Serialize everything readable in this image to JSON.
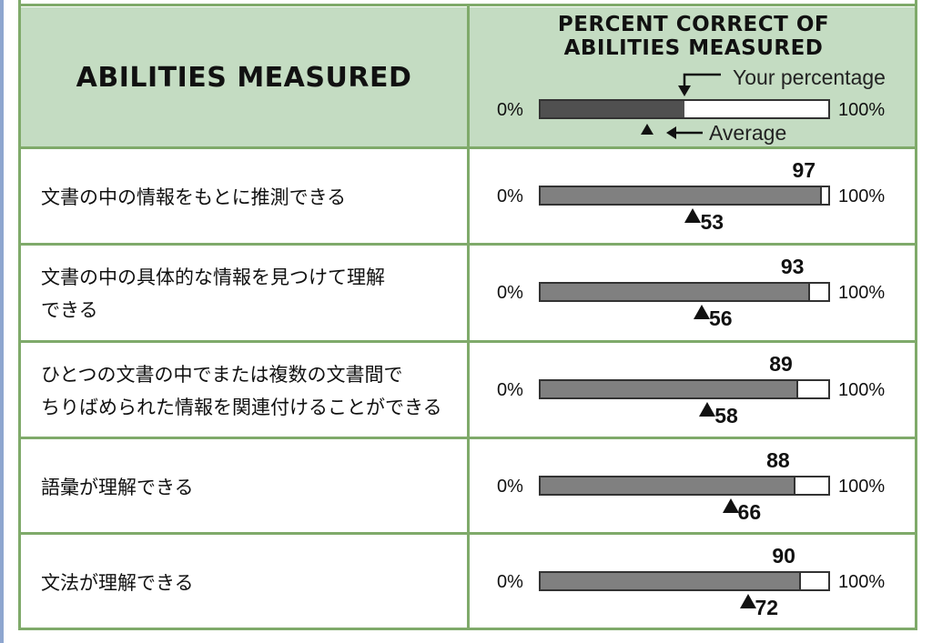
{
  "header": {
    "abilities_title": "ABILITIES MEASURED",
    "percent_title_line1": "PERCENT CORRECT OF",
    "percent_title_line2": "ABILITIES MEASURED"
  },
  "legend": {
    "your_percentage_label": "Your percentage",
    "average_label": "Average",
    "left_pct": "0%",
    "right_pct": "100%",
    "example_fill_fraction": 0.5,
    "example_average_fraction": 0.37
  },
  "colors": {
    "grid_green": "#7faa6a",
    "header_green": "#c4dcc2",
    "bar_gray": "#808080",
    "legend_bar_dark": "#505050"
  },
  "chart_data": {
    "type": "bar",
    "orientation": "horizontal",
    "categories": [
      "文書の中の情報をもとに推測できる",
      "文書の中の具体的な情報を見つけて理解できる",
      "ひとつの文書の中でまたは複数の文書間でちりばめられた情報を関連付けることができる",
      "語彙が理解できる",
      "文法が理解できる"
    ],
    "series": [
      {
        "name": "Your percentage",
        "values": [
          97,
          93,
          89,
          88,
          90
        ]
      },
      {
        "name": "Average",
        "values": [
          53,
          56,
          58,
          66,
          72
        ]
      }
    ],
    "xlim": [
      0,
      100
    ],
    "axis_min_label": "0%",
    "axis_max_label": "100%",
    "title": "PERCENT CORRECT OF ABILITIES MEASURED"
  },
  "rows": [
    {
      "label_line1": "文書の中の情報をもとに推測できる",
      "label_line2": "",
      "score": "97",
      "average": "53"
    },
    {
      "label_line1": "文書の中の具体的な情報を見つけて理解",
      "label_line2": "できる",
      "score": "93",
      "average": "56"
    },
    {
      "label_line1": "ひとつの文書の中でまたは複数の文書間で",
      "label_line2": "ちりばめられた情報を関連付けることができる",
      "score": "89",
      "average": "58"
    },
    {
      "label_line1": "語彙が理解できる",
      "label_line2": "",
      "score": "88",
      "average": "66"
    },
    {
      "label_line1": "文法が理解できる",
      "label_line2": "",
      "score": "90",
      "average": "72"
    }
  ]
}
